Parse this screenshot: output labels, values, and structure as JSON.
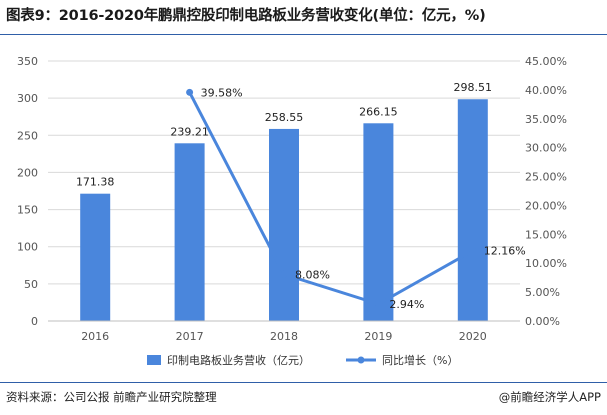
{
  "header": {
    "title": "图表9：2016-2020年鹏鼎控股印制电路板业务营收变化(单位：亿元，%)"
  },
  "footer": {
    "source": "资料来源：公司公报 前瞻产业研究院整理",
    "credit": "@前瞻经济学人APP"
  },
  "colors": {
    "bar": "#4a86dc",
    "line": "#4a86dc",
    "grid": "#d9d9d9",
    "rule": "#2f5fa8"
  },
  "chart_data": {
    "type": "bar",
    "categories": [
      "2016",
      "2017",
      "2018",
      "2019",
      "2020"
    ],
    "series": [
      {
        "name": "印制电路板业务营收（亿元）",
        "type": "bar",
        "axis": "left",
        "values": [
          171.38,
          239.21,
          258.55,
          266.15,
          298.51
        ],
        "labels": [
          "171.38",
          "239.21",
          "258.55",
          "266.15",
          "298.51"
        ]
      },
      {
        "name": "同比增长（%）",
        "type": "line",
        "axis": "right",
        "values": [
          null,
          39.58,
          8.08,
          2.94,
          12.16
        ],
        "labels": [
          "",
          "39.58%",
          "8.08%",
          "2.94%",
          "12.16%"
        ]
      }
    ],
    "ylim_left": [
      0,
      350
    ],
    "yticks_left": [
      "0",
      "50",
      "100",
      "150",
      "200",
      "250",
      "300",
      "350"
    ],
    "ylim_right": [
      0,
      45
    ],
    "yticks_right": [
      "0.00%",
      "5.00%",
      "10.00%",
      "15.00%",
      "20.00%",
      "25.00%",
      "30.00%",
      "35.00%",
      "40.00%",
      "45.00%"
    ],
    "grid": true,
    "legend_position": "bottom"
  }
}
